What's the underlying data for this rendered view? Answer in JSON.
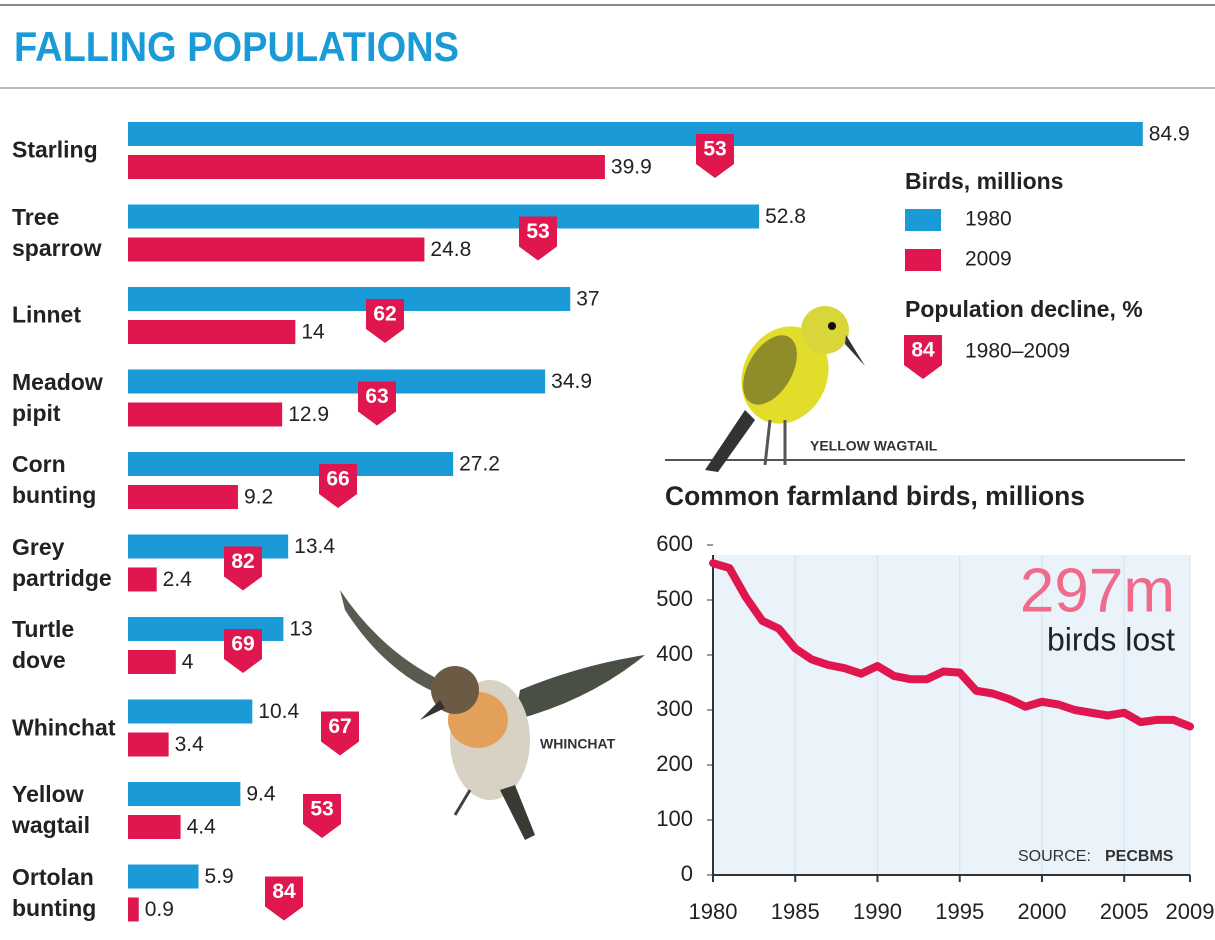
{
  "title": "FALLING POPULATIONS",
  "illustrations": [
    "YELLOW WAGTAIL",
    "WHINCHAT"
  ],
  "chart_data": [
    {
      "type": "bar",
      "orientation": "horizontal",
      "categories": [
        "Starling",
        "Tree sparrow",
        "Linnet",
        "Meadow pipit",
        "Corn bunting",
        "Grey partridge",
        "Turtle dove",
        "Whinchat",
        "Yellow wagtail",
        "Ortolan bunting"
      ],
      "legend_title": "Birds, millions",
      "series": [
        {
          "name": "1980",
          "color": "#1a9bd7",
          "values": [
            84.9,
            52.8,
            37,
            34.9,
            27.2,
            13.4,
            13,
            10.4,
            9.4,
            5.9
          ]
        },
        {
          "name": "2009",
          "color": "#e0174f",
          "values": [
            39.9,
            24.8,
            14,
            12.9,
            9.2,
            2.4,
            4,
            3.4,
            4.4,
            0.9
          ]
        }
      ],
      "decline": {
        "name": "Population decline, %",
        "period": "1980–2009",
        "color": "#e0174f",
        "legend_sample": 84,
        "values": [
          53,
          53,
          62,
          63,
          66,
          82,
          69,
          67,
          53,
          84
        ]
      },
      "xlim": [
        0,
        85
      ]
    },
    {
      "type": "line",
      "title": "Common farmland birds, millions",
      "x": [
        1980,
        1981,
        1982,
        1983,
        1984,
        1985,
        1986,
        1987,
        1988,
        1989,
        1990,
        1991,
        1992,
        1993,
        1994,
        1995,
        1996,
        1997,
        1998,
        1999,
        2000,
        2001,
        2002,
        2003,
        2004,
        2005,
        2006,
        2007,
        2008,
        2009
      ],
      "values": [
        567,
        558,
        505,
        462,
        448,
        412,
        392,
        382,
        376,
        366,
        380,
        362,
        356,
        356,
        370,
        368,
        335,
        330,
        320,
        306,
        315,
        310,
        300,
        295,
        290,
        295,
        278,
        282,
        282,
        270
      ],
      "color": "#e0174f",
      "xlim": [
        1980,
        2009
      ],
      "xticks": [
        1980,
        1985,
        1990,
        1995,
        2000,
        2005,
        2009
      ],
      "ylim": [
        0,
        600
      ],
      "yticks": [
        0,
        100,
        200,
        300,
        400,
        500,
        600
      ],
      "annotation": {
        "figure": "297m",
        "text": "birds lost"
      },
      "source": {
        "label": "SOURCE:",
        "name": "PECBMS"
      }
    }
  ]
}
